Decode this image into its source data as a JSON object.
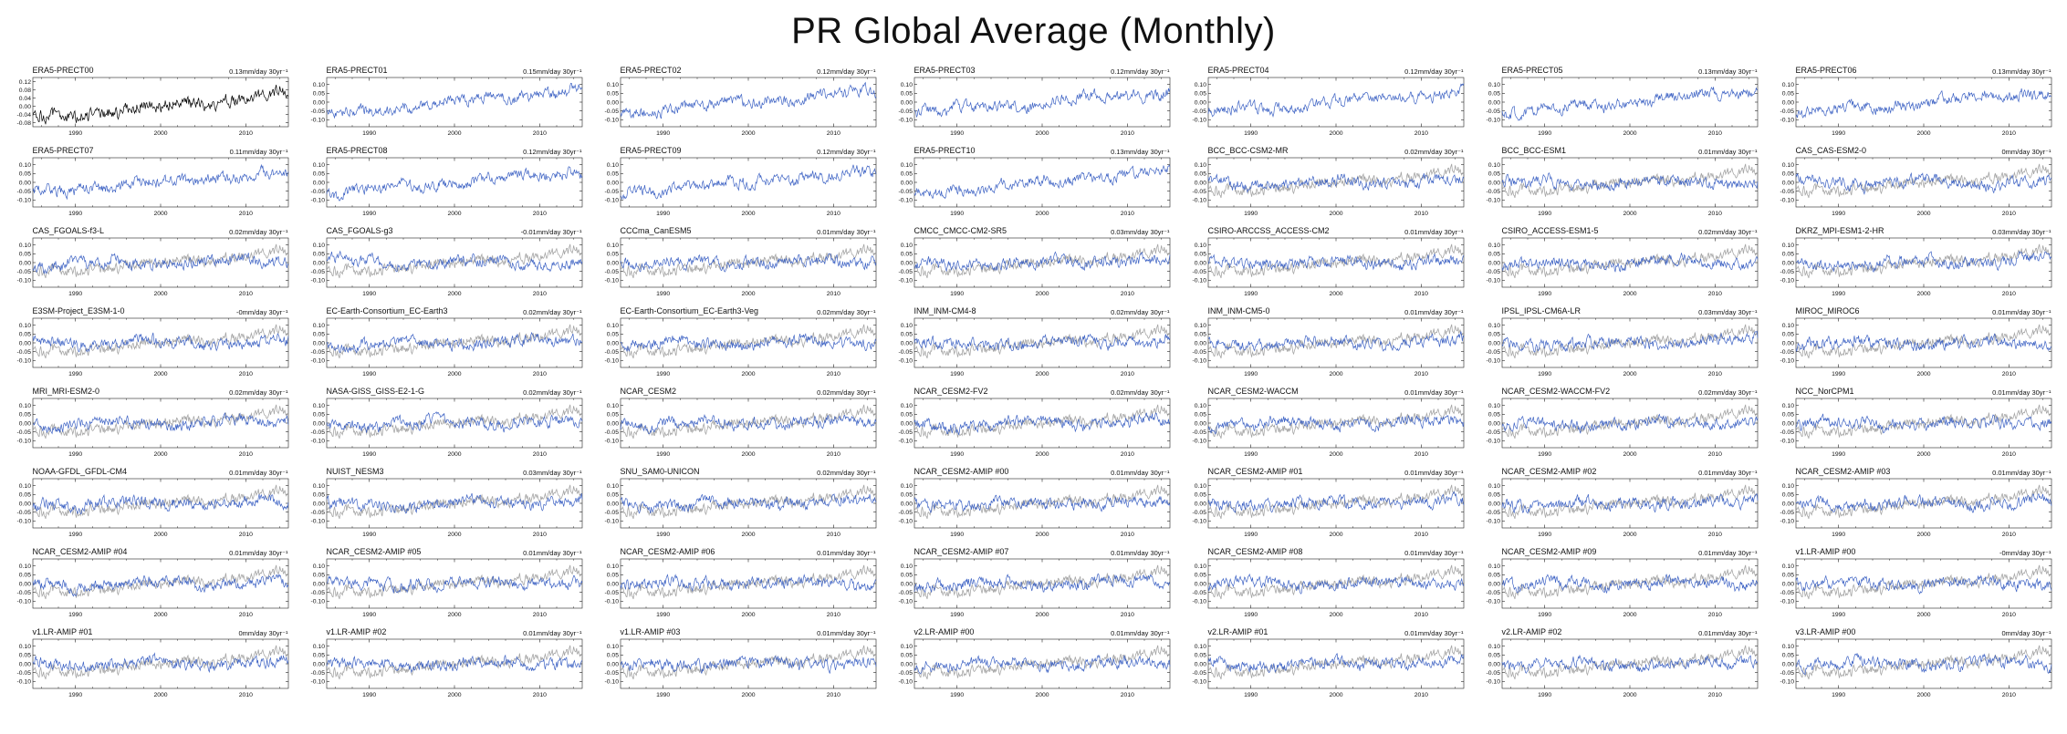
{
  "title": "PR Global Average (Monthly)",
  "chart_data": {
    "type": "line",
    "grid": {
      "rows": 8,
      "cols": 7
    },
    "x": {
      "range": [
        1985,
        2015
      ],
      "ticks": [
        1990,
        2000,
        2010
      ],
      "minor_step": 2
    },
    "y_default": {
      "lim": [
        -0.14,
        0.14
      ],
      "ticks": [
        0.1,
        0.05,
        0.0,
        -0.05,
        -0.1
      ],
      "tick_labels": [
        "0.10",
        "0.05",
        "0.00",
        "-0.05",
        "-0.10"
      ]
    },
    "colors": {
      "reference": "#000000",
      "model": "#3E63C4",
      "overlay": "#A6A6A6"
    },
    "trend_units": "mm/day 30yr⁻¹",
    "panels": [
      {
        "title": "ERA5-PRECT00",
        "trend_label": "0.13mm/day 30yr⁻¹",
        "trend_value": 0.13,
        "color": "reference",
        "overlay": false,
        "y": {
          "lim": [
            -0.1,
            0.14
          ],
          "ticks": [
            0.12,
            0.08,
            0.04,
            0.0,
            -0.04,
            -0.08
          ],
          "tick_labels": [
            "0.12",
            "0.08",
            "0.04",
            "0.00",
            "-0.04",
            "-0.08"
          ]
        }
      },
      {
        "title": "ERA5-PRECT01",
        "trend_label": "0.15mm/day 30yr⁻¹",
        "trend_value": 0.15,
        "color": "model",
        "overlay": false
      },
      {
        "title": "ERA5-PRECT02",
        "trend_label": "0.12mm/day 30yr⁻¹",
        "trend_value": 0.12,
        "color": "model",
        "overlay": false
      },
      {
        "title": "ERA5-PRECT03",
        "trend_label": "0.12mm/day 30yr⁻¹",
        "trend_value": 0.12,
        "color": "model",
        "overlay": false
      },
      {
        "title": "ERA5-PRECT04",
        "trend_label": "0.12mm/day 30yr⁻¹",
        "trend_value": 0.12,
        "color": "model",
        "overlay": false
      },
      {
        "title": "ERA5-PRECT05",
        "trend_label": "0.13mm/day 30yr⁻¹",
        "trend_value": 0.13,
        "color": "model",
        "overlay": false
      },
      {
        "title": "ERA5-PRECT06",
        "trend_label": "0.13mm/day 30yr⁻¹",
        "trend_value": 0.13,
        "color": "model",
        "overlay": false
      },
      {
        "title": "ERA5-PRECT07",
        "trend_label": "0.11mm/day 30yr⁻¹",
        "trend_value": 0.11,
        "color": "model",
        "overlay": false
      },
      {
        "title": "ERA5-PRECT08",
        "trend_label": "0.12mm/day 30yr⁻¹",
        "trend_value": 0.12,
        "color": "model",
        "overlay": false
      },
      {
        "title": "ERA5-PRECT09",
        "trend_label": "0.12mm/day 30yr⁻¹",
        "trend_value": 0.12,
        "color": "model",
        "overlay": false
      },
      {
        "title": "ERA5-PRECT10",
        "trend_label": "0.13mm/day 30yr⁻¹",
        "trend_value": 0.13,
        "color": "model",
        "overlay": false
      },
      {
        "title": "BCC_BCC-CSM2-MR",
        "trend_label": "0.02mm/day 30yr⁻¹",
        "trend_value": 0.02,
        "color": "model",
        "overlay": true
      },
      {
        "title": "BCC_BCC-ESM1",
        "trend_label": "0.01mm/day 30yr⁻¹",
        "trend_value": 0.01,
        "color": "model",
        "overlay": true
      },
      {
        "title": "CAS_CAS-ESM2-0",
        "trend_label": "0mm/day 30yr⁻¹",
        "trend_value": 0,
        "color": "model",
        "overlay": true
      },
      {
        "title": "CAS_FGOALS-f3-L",
        "trend_label": "0.02mm/day 30yr⁻¹",
        "trend_value": 0.02,
        "color": "model",
        "overlay": true
      },
      {
        "title": "CAS_FGOALS-g3",
        "trend_label": "-0.01mm/day 30yr⁻¹",
        "trend_value": -0.01,
        "color": "model",
        "overlay": true
      },
      {
        "title": "CCCma_CanESM5",
        "trend_label": "0.01mm/day 30yr⁻¹",
        "trend_value": 0.01,
        "color": "model",
        "overlay": true
      },
      {
        "title": "CMCC_CMCC-CM2-SR5",
        "trend_label": "0.03mm/day 30yr⁻¹",
        "trend_value": 0.03,
        "color": "model",
        "overlay": true
      },
      {
        "title": "CSIRO-ARCCSS_ACCESS-CM2",
        "trend_label": "0.01mm/day 30yr⁻¹",
        "trend_value": 0.01,
        "color": "model",
        "overlay": true
      },
      {
        "title": "CSIRO_ACCESS-ESM1-5",
        "trend_label": "0.02mm/day 30yr⁻¹",
        "trend_value": 0.02,
        "color": "model",
        "overlay": true
      },
      {
        "title": "DKRZ_MPI-ESM1-2-HR",
        "trend_label": "0.03mm/day 30yr⁻¹",
        "trend_value": 0.03,
        "color": "model",
        "overlay": true
      },
      {
        "title": "E3SM-Project_E3SM-1-0",
        "trend_label": "-0mm/day 30yr⁻¹",
        "trend_value": -0.002,
        "color": "model",
        "overlay": true
      },
      {
        "title": "EC-Earth-Consortium_EC-Earth3",
        "trend_label": "0.02mm/day 30yr⁻¹",
        "trend_value": 0.02,
        "color": "model",
        "overlay": true
      },
      {
        "title": "EC-Earth-Consortium_EC-Earth3-Veg",
        "trend_label": "0.02mm/day 30yr⁻¹",
        "trend_value": 0.02,
        "color": "model",
        "overlay": true
      },
      {
        "title": "INM_INM-CM4-8",
        "trend_label": "0.02mm/day 30yr⁻¹",
        "trend_value": 0.02,
        "color": "model",
        "overlay": true
      },
      {
        "title": "INM_INM-CM5-0",
        "trend_label": "0.01mm/day 30yr⁻¹",
        "trend_value": 0.01,
        "color": "model",
        "overlay": true
      },
      {
        "title": "IPSL_IPSL-CM6A-LR",
        "trend_label": "0.03mm/day 30yr⁻¹",
        "trend_value": 0.03,
        "color": "model",
        "overlay": true
      },
      {
        "title": "MIROC_MIROC6",
        "trend_label": "0.01mm/day 30yr⁻¹",
        "trend_value": 0.01,
        "color": "model",
        "overlay": true
      },
      {
        "title": "MRI_MRI-ESM2-0",
        "trend_label": "0.02mm/day 30yr⁻¹",
        "trend_value": 0.02,
        "color": "model",
        "overlay": true
      },
      {
        "title": "NASA-GISS_GISS-E2-1-G",
        "trend_label": "0.02mm/day 30yr⁻¹",
        "trend_value": 0.02,
        "color": "model",
        "overlay": true
      },
      {
        "title": "NCAR_CESM2",
        "trend_label": "0.02mm/day 30yr⁻¹",
        "trend_value": 0.02,
        "color": "model",
        "overlay": true
      },
      {
        "title": "NCAR_CESM2-FV2",
        "trend_label": "0.02mm/day 30yr⁻¹",
        "trend_value": 0.02,
        "color": "model",
        "overlay": true
      },
      {
        "title": "NCAR_CESM2-WACCM",
        "trend_label": "0.01mm/day 30yr⁻¹",
        "trend_value": 0.01,
        "color": "model",
        "overlay": true
      },
      {
        "title": "NCAR_CESM2-WACCM-FV2",
        "trend_label": "0.02mm/day 30yr⁻¹",
        "trend_value": 0.02,
        "color": "model",
        "overlay": true
      },
      {
        "title": "NCC_NorCPM1",
        "trend_label": "0.01mm/day 30yr⁻¹",
        "trend_value": 0.01,
        "color": "model",
        "overlay": true
      },
      {
        "title": "NOAA-GFDL_GFDL-CM4",
        "trend_label": "0.01mm/day 30yr⁻¹",
        "trend_value": 0.01,
        "color": "model",
        "overlay": true
      },
      {
        "title": "NUIST_NESM3",
        "trend_label": "0.03mm/day 30yr⁻¹",
        "trend_value": 0.03,
        "color": "model",
        "overlay": true
      },
      {
        "title": "SNU_SAM0-UNICON",
        "trend_label": "0.02mm/day 30yr⁻¹",
        "trend_value": 0.02,
        "color": "model",
        "overlay": true
      },
      {
        "title": "NCAR_CESM2-AMIP #00",
        "trend_label": "0.01mm/day 30yr⁻¹",
        "trend_value": 0.01,
        "color": "model",
        "overlay": true
      },
      {
        "title": "NCAR_CESM2-AMIP #01",
        "trend_label": "0.01mm/day 30yr⁻¹",
        "trend_value": 0.01,
        "color": "model",
        "overlay": true
      },
      {
        "title": "NCAR_CESM2-AMIP #02",
        "trend_label": "0.01mm/day 30yr⁻¹",
        "trend_value": 0.01,
        "color": "model",
        "overlay": true
      },
      {
        "title": "NCAR_CESM2-AMIP #03",
        "trend_label": "0.01mm/day 30yr⁻¹",
        "trend_value": 0.01,
        "color": "model",
        "overlay": true
      },
      {
        "title": "NCAR_CESM2-AMIP #04",
        "trend_label": "0.01mm/day 30yr⁻¹",
        "trend_value": 0.01,
        "color": "model",
        "overlay": true
      },
      {
        "title": "NCAR_CESM2-AMIP #05",
        "trend_label": "0.01mm/day 30yr⁻¹",
        "trend_value": 0.01,
        "color": "model",
        "overlay": true
      },
      {
        "title": "NCAR_CESM2-AMIP #06",
        "trend_label": "0.01mm/day 30yr⁻¹",
        "trend_value": 0.01,
        "color": "model",
        "overlay": true
      },
      {
        "title": "NCAR_CESM2-AMIP #07",
        "trend_label": "0.01mm/day 30yr⁻¹",
        "trend_value": 0.01,
        "color": "model",
        "overlay": true
      },
      {
        "title": "NCAR_CESM2-AMIP #08",
        "trend_label": "0.01mm/day 30yr⁻¹",
        "trend_value": 0.01,
        "color": "model",
        "overlay": true
      },
      {
        "title": "NCAR_CESM2-AMIP #09",
        "trend_label": "0.01mm/day 30yr⁻¹",
        "trend_value": 0.01,
        "color": "model",
        "overlay": true
      },
      {
        "title": "v1.LR-AMIP #00",
        "trend_label": "-0mm/day 30yr⁻¹",
        "trend_value": -0.002,
        "color": "model",
        "overlay": true
      },
      {
        "title": "v1.LR-AMIP #01",
        "trend_label": "0mm/day 30yr⁻¹",
        "trend_value": 0,
        "color": "model",
        "overlay": true
      },
      {
        "title": "v1.LR-AMIP #02",
        "trend_label": "0.01mm/day 30yr⁻¹",
        "trend_value": 0.01,
        "color": "model",
        "overlay": true
      },
      {
        "title": "v1.LR-AMIP #03",
        "trend_label": "0.01mm/day 30yr⁻¹",
        "trend_value": 0.01,
        "color": "model",
        "overlay": true
      },
      {
        "title": "v2.LR-AMIP #00",
        "trend_label": "0.01mm/day 30yr⁻¹",
        "trend_value": 0.01,
        "color": "model",
        "overlay": true
      },
      {
        "title": "v2.LR-AMIP #01",
        "trend_label": "0.01mm/day 30yr⁻¹",
        "trend_value": 0.01,
        "color": "model",
        "overlay": true
      },
      {
        "title": "v2.LR-AMIP #02",
        "trend_label": "0.01mm/day 30yr⁻¹",
        "trend_value": 0.01,
        "color": "model",
        "overlay": true
      },
      {
        "title": "v3.LR-AMIP #00",
        "trend_label": "0mm/day 30yr⁻¹",
        "trend_value": 0,
        "color": "model",
        "overlay": true
      }
    ]
  }
}
